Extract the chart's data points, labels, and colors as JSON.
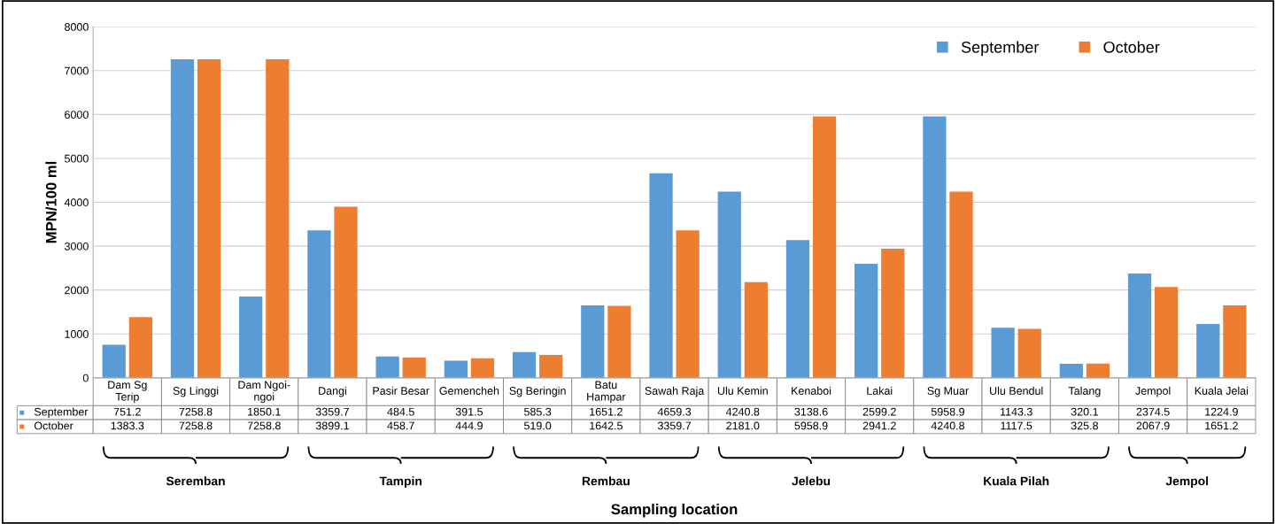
{
  "chart_data": {
    "type": "bar",
    "ylabel": "MPN/100 ml",
    "categories": [
      "Dam Sg Terip",
      "Sg Linggi",
      "Dam Ngoi-ngoi",
      "Dangi",
      "Pasir Besar",
      "Gemencheh",
      "Sg Beringin",
      "Batu Hampar",
      "Sawah Raja",
      "Ulu Kemin",
      "Kenaboi",
      "Lakai",
      "Sg Muar",
      "Ulu Bendul",
      "Talang",
      "Jempol",
      "Kuala Jelai"
    ],
    "series": [
      {
        "name": "September",
        "color": "#5b9bd5",
        "values": [
          751.2,
          7258.8,
          1850.1,
          3359.7,
          484.5,
          391.5,
          585.3,
          1651.2,
          4659.3,
          4240.8,
          3138.6,
          2599.2,
          5958.9,
          1143.3,
          320.1,
          2374.5,
          1224.9
        ]
      },
      {
        "name": "October",
        "color": "#ed7d31",
        "values": [
          1383.3,
          7258.8,
          7258.8,
          3899.1,
          458.7,
          444.9,
          519.0,
          1642.5,
          3359.7,
          2181.0,
          5958.9,
          2941.2,
          4240.8,
          1117.5,
          325.8,
          2067.9,
          1651.2
        ]
      }
    ],
    "value_labels": [
      [
        "751.2",
        "7258.8",
        "1850.1",
        "3359.7",
        "484.5",
        "391.5",
        "585.3",
        "1651.2",
        "4659.3",
        "4240.8",
        "3138.6",
        "2599.2",
        "5958.9",
        "1143.3",
        "320.1",
        "2374.5",
        "1224.9"
      ],
      [
        "1383.3",
        "7258.8",
        "7258.8",
        "3899.1",
        "458.7",
        "444.9",
        "519.0",
        "1642.5",
        "3359.7",
        "2181.0",
        "5958.9",
        "2941.2",
        "4240.8",
        "1117.5",
        "325.8",
        "2067.9",
        "1651.2"
      ]
    ],
    "annotations": [
      "Seremban",
      "Tampin",
      "Rembau",
      "Jelebu",
      "Kuala Pilah",
      "Jempol",
      "Sampling location"
    ],
    "ylim": [
      0,
      8000
    ],
    "yticks": [
      0,
      1000,
      2000,
      3000,
      4000,
      5000,
      6000,
      7000,
      8000
    ],
    "grid": "y",
    "legend": "top right"
  }
}
